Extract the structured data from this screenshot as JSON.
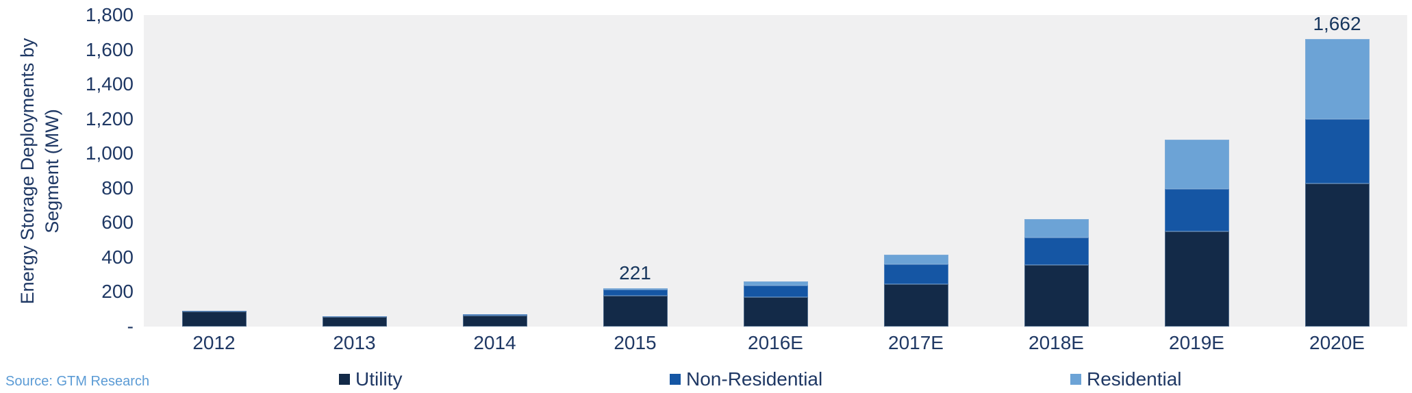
{
  "chart_data": {
    "type": "bar",
    "stacked": true,
    "title": "",
    "ylabel": "Energy Storage Deployments by Segment (MW)",
    "ylabel_lines": [
      "Energy Storage Deployments by",
      "Segment (MW)"
    ],
    "categories": [
      "2012",
      "2013",
      "2014",
      "2015",
      "2016E",
      "2017E",
      "2018E",
      "2019E",
      "2020E"
    ],
    "series": [
      {
        "name": "Utility",
        "color": "#132A48",
        "values": [
          88,
          54,
          62,
          180,
          172,
          245,
          355,
          550,
          825
        ]
      },
      {
        "name": "Non-Residential",
        "color": "#1556A4",
        "values": [
          4,
          4,
          8,
          33,
          66,
          115,
          160,
          245,
          375
        ]
      },
      {
        "name": "Residential",
        "color": "#6CA3D6",
        "values": [
          0,
          0,
          2,
          8,
          24,
          55,
          105,
          285,
          462
        ]
      }
    ],
    "totals": [
      92,
      58,
      72,
      221,
      262,
      415,
      620,
      1080,
      1662
    ],
    "bar_labels": [
      "",
      "",
      "",
      "221",
      "",
      "",
      "",
      "",
      "1,662"
    ],
    "ylim": [
      0,
      1800
    ],
    "yticks": [
      {
        "label": "1,800",
        "value": 1800
      },
      {
        "label": "1,600",
        "value": 1600
      },
      {
        "label": "1,400",
        "value": 1400
      },
      {
        "label": "1,200",
        "value": 1200
      },
      {
        "label": "1,000",
        "value": 1000
      },
      {
        "label": "800",
        "value": 800
      },
      {
        "label": "600",
        "value": 600
      },
      {
        "label": "400",
        "value": 400
      },
      {
        "label": "200",
        "value": 200
      },
      {
        "label": "-",
        "value": 0
      }
    ],
    "grid": false,
    "legend_position": "bottom",
    "plot_background": "#F0F0F1"
  },
  "source": {
    "label": "Source: GTM Research"
  },
  "colors": {
    "axis_text": "#1F3864",
    "data_label_text": "#17365D",
    "source_text": "#5B9BD5",
    "plot_background": "#F0F0F1",
    "page_background": "#FFFFFF"
  }
}
